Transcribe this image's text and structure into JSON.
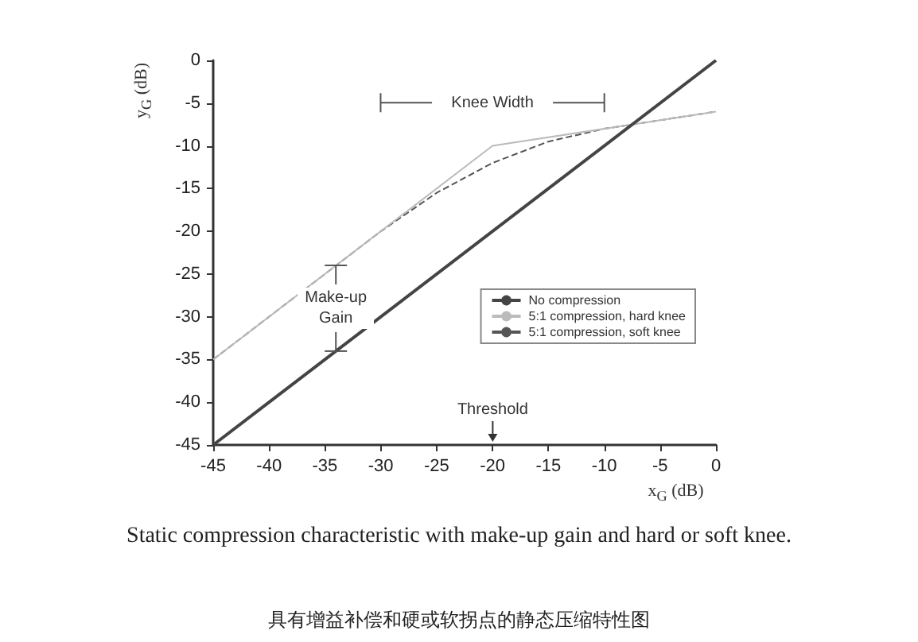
{
  "chart_data": {
    "type": "line",
    "xlabel": "x$_{G}$ (dB)",
    "ylabel": "y$_{G}$ (dB)",
    "xlim": [
      -45,
      0
    ],
    "xticks": [
      -45,
      -40,
      -35,
      -30,
      -25,
      -20,
      -15,
      -10,
      -5,
      0
    ],
    "ylim": [
      -45,
      0
    ],
    "yticks": [
      -45,
      -40,
      -35,
      -30,
      -25,
      -20,
      -15,
      -10,
      -5,
      0
    ],
    "grid": false,
    "legend": "right",
    "marker": "none",
    "series": [
      {
        "name": "No compression",
        "color": "#444444",
        "line_style": "solid",
        "x": [
          -45,
          0
        ],
        "values": [
          -45,
          0
        ]
      },
      {
        "name": "5:1 compression, hard knee",
        "color": "#bbbbbb",
        "line_style": "solid",
        "x": [
          -45,
          -20,
          0
        ],
        "values": [
          -35,
          -10,
          -6
        ]
      },
      {
        "name": "5:1 compression, soft knee",
        "color": "#555555",
        "line_style": "dashed",
        "x": [
          -45,
          -30,
          -25,
          -20,
          -15,
          -10,
          0
        ],
        "values": [
          -35,
          -20,
          -15.5,
          -12,
          -9.5,
          -8,
          -6
        ]
      }
    ],
    "annotations": [
      "Knee Width",
      "Make-up Gain",
      "Threshold",
      "Static compression characteristic with make-up gain and hard or soft knee.",
      "具有增益补偿和硬或软拐点的静态压缩特性图"
    ]
  }
}
